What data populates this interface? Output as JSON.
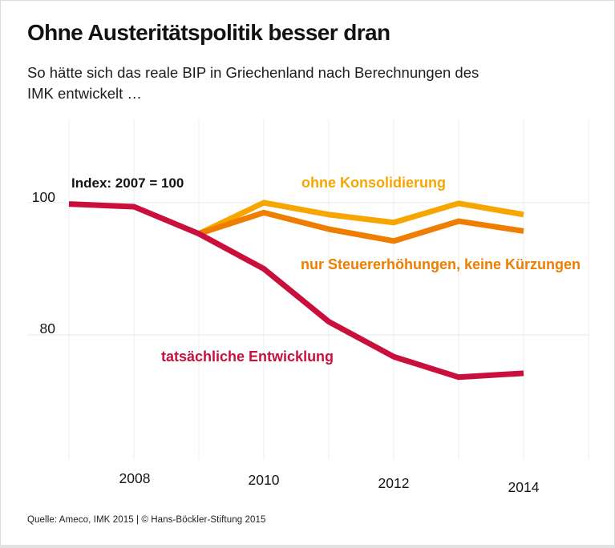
{
  "page": {
    "title": "Ohne Austeritätspolitik besser dran",
    "subtitle_line1": "So hätte sich das reale BIP in Griechenland nach Berechnungen des",
    "subtitle_line2": "IMK entwickelt …",
    "source": "Quelle: Ameco, IMK 2015 | © Hans-Böckler-Stiftung 2015"
  },
  "chart_data": {
    "type": "line",
    "title": "Ohne Austeritätspolitik besser dran",
    "subtitle": "So hätte sich das reale BIP in Griechenland nach Berechnungen des IMK entwickelt …",
    "annotation": "Index: 2007 = 100",
    "x_range": [
      2007,
      2015
    ],
    "x_gridline_years": [
      2007,
      2008,
      2009,
      2010,
      2011,
      2012,
      2013,
      2014,
      2015
    ],
    "x_ticks": [
      "2008",
      "2010",
      "2012",
      "2014"
    ],
    "y_ticks": [
      {
        "value": 100,
        "label": "100"
      },
      {
        "value": 80,
        "label": "80"
      }
    ],
    "grid": true,
    "legend_position": "inline-labels",
    "series": [
      {
        "name": "ohne Konsolidierung",
        "color": "#f7a600",
        "x": [
          2009,
          2010,
          2011,
          2012,
          2013,
          2014
        ],
        "values": [
          95.3,
          100.0,
          98.2,
          97.0,
          99.9,
          98.2
        ]
      },
      {
        "name": "nur Steuererhöhungen, keine Kürzungen",
        "color": "#ee7d00",
        "x": [
          2009,
          2010,
          2011,
          2012,
          2013,
          2014
        ],
        "values": [
          95.3,
          98.5,
          96.0,
          94.2,
          97.2,
          95.7
        ]
      },
      {
        "name": "tatsächliche Entwicklung",
        "color": "#c9103d",
        "x": [
          2007,
          2008,
          2009,
          2010,
          2011,
          2012,
          2013,
          2014
        ],
        "values": [
          99.8,
          99.4,
          95.3,
          90.0,
          82.0,
          76.7,
          73.6,
          74.2
        ]
      }
    ],
    "colors": {
      "grid_vertical": "#ededed",
      "grid_horizontal": "#e8e8e8"
    }
  }
}
